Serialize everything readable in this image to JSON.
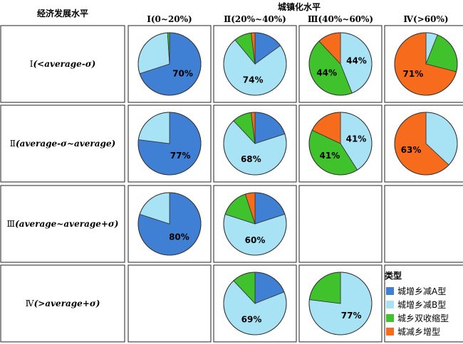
{
  "chart_data": {
    "type": "pie",
    "title": "城镇化水平",
    "row_axis_label": "经济发展水平",
    "columns": [
      "Ⅰ(0~20%)",
      "Ⅱ(20%~40%)",
      "Ⅲ(40%~60%)",
      "Ⅳ(>60%)"
    ],
    "rows": [
      "Ⅰ(<average-σ)",
      "Ⅱ(average-σ~average)",
      "Ⅲ(average~average+σ)",
      "Ⅳ(>average+σ)"
    ],
    "legend": {
      "title": "类型",
      "position": "bottom-right",
      "categories": [
        "城增乡减A型",
        "城增乡减B型",
        "城乡双收缩型",
        "城减乡增型"
      ]
    },
    "colors": [
      "#3f7fd4",
      "#a8e2f5",
      "#3fc22c",
      "#f76b1c"
    ],
    "cells": [
      {
        "row": 0,
        "col": 0,
        "values": [
          70,
          29,
          1,
          0
        ],
        "label": "70%",
        "label_category": 0
      },
      {
        "row": 0,
        "col": 1,
        "values": [
          15,
          74,
          9,
          2
        ],
        "label": "74%",
        "label_category": 1
      },
      {
        "row": 0,
        "col": 2,
        "values": [
          0,
          44,
          44,
          12
        ],
        "label": "44%",
        "label_category": 1,
        "label2": "44%",
        "label2_category": 2
      },
      {
        "row": 0,
        "col": 3,
        "values": [
          0,
          6,
          23,
          71
        ],
        "label": "71%",
        "label_category": 3
      },
      {
        "row": 1,
        "col": 0,
        "values": [
          77,
          23,
          0,
          0
        ],
        "label": "77%",
        "label_category": 0
      },
      {
        "row": 1,
        "col": 1,
        "values": [
          20,
          68,
          10,
          2
        ],
        "label": "68%",
        "label_category": 1
      },
      {
        "row": 1,
        "col": 2,
        "values": [
          0,
          41,
          41,
          18
        ],
        "label": "41%",
        "label_category": 1,
        "label2": "41%",
        "label2_category": 2
      },
      {
        "row": 1,
        "col": 3,
        "values": [
          0,
          37,
          0,
          63
        ],
        "label": "63%",
        "label_category": 3
      },
      {
        "row": 2,
        "col": 0,
        "values": [
          80,
          20,
          0,
          0
        ],
        "label": "80%",
        "label_category": 0
      },
      {
        "row": 2,
        "col": 1,
        "values": [
          20,
          60,
          15,
          5
        ],
        "label": "60%",
        "label_category": 1
      },
      {
        "row": 3,
        "col": 1,
        "values": [
          19,
          69,
          12,
          0
        ],
        "label": "69%",
        "label_category": 1
      },
      {
        "row": 3,
        "col": 2,
        "values": [
          0,
          77,
          23,
          0
        ],
        "label": "77%",
        "label_category": 1
      }
    ]
  }
}
